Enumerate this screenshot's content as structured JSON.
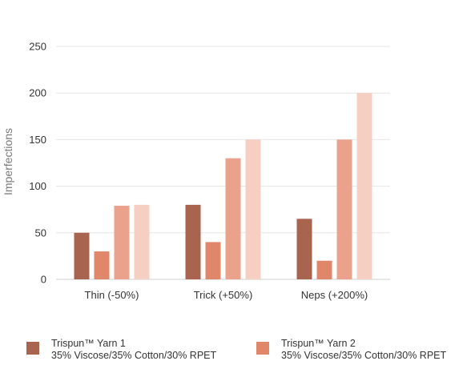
{
  "chart_data": {
    "type": "bar",
    "title": "",
    "xlabel": "",
    "ylabel": "Imperfections",
    "ylim": [
      0,
      250
    ],
    "yticks": [
      "0",
      "50",
      "100",
      "150",
      "200",
      "250"
    ],
    "grid": true,
    "legend_position": "bottom",
    "categories": [
      "Thin (-50%)",
      "Trick (+50%)",
      "Neps (+200%)"
    ],
    "series": [
      {
        "color": "#a96450",
        "values": [
          50,
          80,
          65
        ]
      },
      {
        "color": "#e0876a",
        "values": [
          30,
          40,
          20
        ]
      },
      {
        "color": "#eba28d",
        "values": [
          79,
          130,
          150
        ]
      },
      {
        "color": "#f5cfc2",
        "values": [
          80,
          150,
          200
        ]
      }
    ]
  },
  "legend": {
    "items": [
      {
        "line1": "Trispun™ Yarn 1",
        "line2": "35% Viscose/35% Cotton/30% RPET",
        "color": "#a96450"
      },
      {
        "line1": "Trispun™ Yarn 2",
        "line2": "35% Viscose/35% Cotton/30% RPET",
        "color": "#e0876a"
      }
    ]
  }
}
